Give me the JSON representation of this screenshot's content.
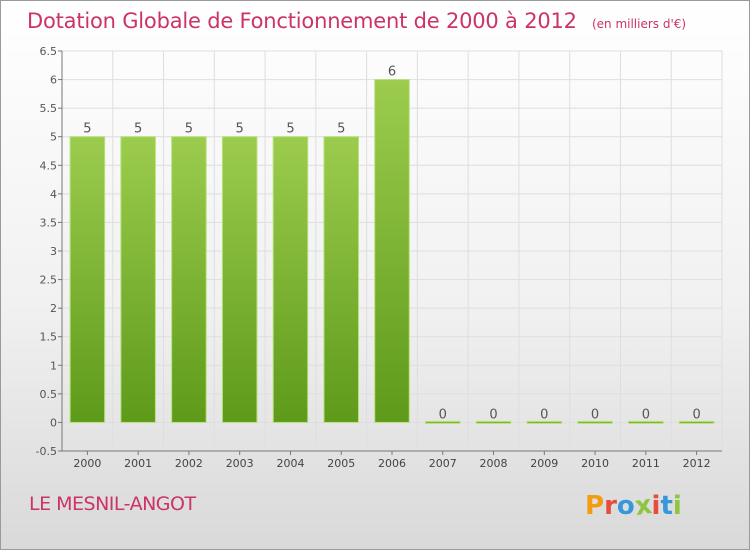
{
  "header": {
    "title": "Dotation Globale de Fonctionnement de 2000 à 2012",
    "subtitle": "(en milliers d'€)"
  },
  "footer": {
    "commune": "LE MESNIL-ANGOT",
    "logo_text": "Proxiti",
    "logo_colors": [
      "#f39c12",
      "#e74c3c",
      "#3498db",
      "#8dc63f",
      "#e74c3c",
      "#3498db",
      "#8dc63f"
    ]
  },
  "chart_data": {
    "type": "bar",
    "title": "Dotation Globale de Fonctionnement de 2000 à 2012",
    "subtitle": "(en milliers d'€)",
    "xlabel": "",
    "ylabel": "",
    "categories": [
      "2000",
      "2001",
      "2002",
      "2003",
      "2004",
      "2005",
      "2006",
      "2007",
      "2008",
      "2009",
      "2010",
      "2011",
      "2012"
    ],
    "values": [
      5,
      5,
      5,
      5,
      5,
      5,
      6,
      0,
      0,
      0,
      0,
      0,
      0
    ],
    "data_labels": [
      "5",
      "5",
      "5",
      "5",
      "5",
      "5",
      "6",
      "0",
      "0",
      "0",
      "0",
      "0",
      "0"
    ],
    "ylim": [
      -0.5,
      6.5
    ],
    "yticks": [
      "-0.5",
      "0",
      "0.5",
      "1",
      "1.5",
      "2",
      "2.5",
      "3",
      "3.5",
      "4",
      "4.5",
      "5",
      "5.5",
      "6",
      "6.5"
    ],
    "ytick_values": [
      -0.5,
      0,
      0.5,
      1,
      1.5,
      2,
      2.5,
      3,
      3.5,
      4,
      4.5,
      5,
      5.5,
      6,
      6.5
    ],
    "grid": true,
    "legend": "none",
    "bar_color_top": "#9ccc4e",
    "bar_color_bottom": "#5e9a1a"
  }
}
